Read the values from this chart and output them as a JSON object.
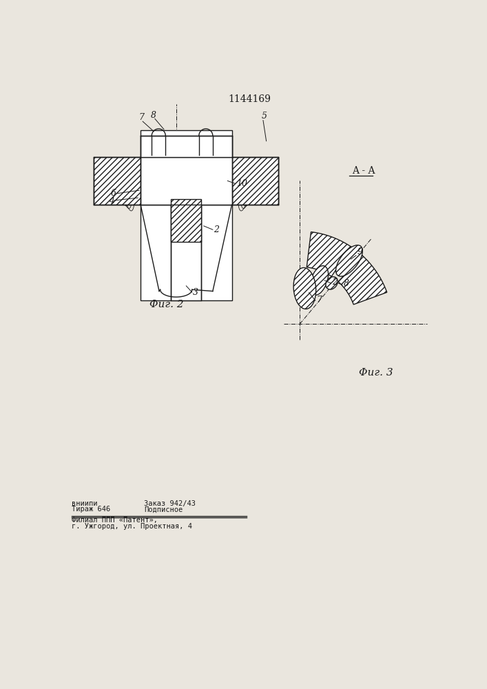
{
  "title": "1144169",
  "fig2_label": "Φиг. 2",
  "fig3_label": "Φиг. 3",
  "section_label": "A - A",
  "bottom_line1a": "вниипи",
  "bottom_line1b": "Заказ 942/43",
  "bottom_line2a": "Тираж 646",
  "bottom_line2b": "Подписное",
  "bottom_line3": "Филиал ППП «Патент»,",
  "bottom_line4": "г. Ужгород, ул. Проектная, 4",
  "bg_color": "#eae6de",
  "line_color": "#1a1a1a"
}
